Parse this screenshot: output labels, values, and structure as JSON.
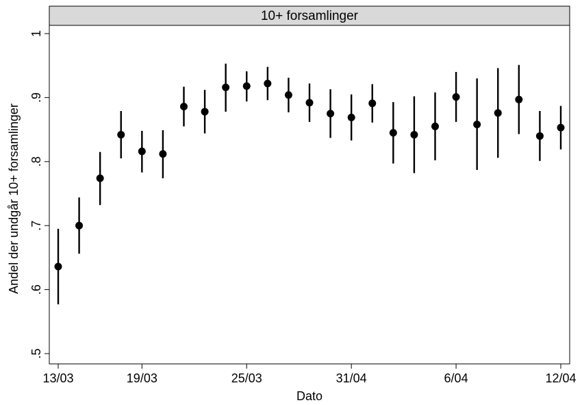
{
  "chart_data": {
    "type": "scatter",
    "panel_title": "10+ forsamlinger",
    "xlabel": "Dato",
    "ylabel": "Andel der undgår 10+ forsamlinger",
    "ylim": [
      0.5,
      1.0
    ],
    "yticks": [
      0.5,
      0.6,
      0.7,
      0.8,
      0.9,
      1.0
    ],
    "ytick_labels": [
      ".5",
      ".6",
      ".7",
      ".8",
      ".9",
      "1"
    ],
    "xlim": [
      0,
      24
    ],
    "xticks": [
      0,
      4,
      9,
      14,
      19,
      24
    ],
    "xtick_labels": [
      "13/03",
      "19/03",
      "25/03",
      "31/04",
      "6/04",
      "12/04"
    ],
    "grid": false,
    "legend": "none",
    "marker_color": "#000000",
    "header_fill": "#d9d9d9",
    "series": [
      {
        "points": [
          {
            "x": 0,
            "y": 0.636,
            "lo": 0.577,
            "hi": 0.695
          },
          {
            "x": 1,
            "y": 0.7,
            "lo": 0.656,
            "hi": 0.744
          },
          {
            "x": 2,
            "y": 0.774,
            "lo": 0.732,
            "hi": 0.815
          },
          {
            "x": 3,
            "y": 0.842,
            "lo": 0.805,
            "hi": 0.879
          },
          {
            "x": 4,
            "y": 0.816,
            "lo": 0.783,
            "hi": 0.848
          },
          {
            "x": 5,
            "y": 0.812,
            "lo": 0.774,
            "hi": 0.849
          },
          {
            "x": 6,
            "y": 0.886,
            "lo": 0.855,
            "hi": 0.917
          },
          {
            "x": 7,
            "y": 0.878,
            "lo": 0.844,
            "hi": 0.912
          },
          {
            "x": 8,
            "y": 0.916,
            "lo": 0.878,
            "hi": 0.953
          },
          {
            "x": 9,
            "y": 0.918,
            "lo": 0.894,
            "hi": 0.941
          },
          {
            "x": 10,
            "y": 0.922,
            "lo": 0.896,
            "hi": 0.948
          },
          {
            "x": 11,
            "y": 0.904,
            "lo": 0.877,
            "hi": 0.931
          },
          {
            "x": 12,
            "y": 0.892,
            "lo": 0.862,
            "hi": 0.922
          },
          {
            "x": 13,
            "y": 0.875,
            "lo": 0.837,
            "hi": 0.913
          },
          {
            "x": 14,
            "y": 0.869,
            "lo": 0.833,
            "hi": 0.905
          },
          {
            "x": 15,
            "y": 0.891,
            "lo": 0.861,
            "hi": 0.921
          },
          {
            "x": 16,
            "y": 0.845,
            "lo": 0.797,
            "hi": 0.893
          },
          {
            "x": 17,
            "y": 0.842,
            "lo": 0.782,
            "hi": 0.902
          },
          {
            "x": 18,
            "y": 0.855,
            "lo": 0.802,
            "hi": 0.908
          },
          {
            "x": 19,
            "y": 0.901,
            "lo": 0.862,
            "hi": 0.94
          },
          {
            "x": 20,
            "y": 0.858,
            "lo": 0.787,
            "hi": 0.93
          },
          {
            "x": 21,
            "y": 0.876,
            "lo": 0.806,
            "hi": 0.946
          },
          {
            "x": 22,
            "y": 0.897,
            "lo": 0.843,
            "hi": 0.951
          },
          {
            "x": 23,
            "y": 0.84,
            "lo": 0.801,
            "hi": 0.879
          },
          {
            "x": 24,
            "y": 0.853,
            "lo": 0.819,
            "hi": 0.887
          }
        ]
      }
    ]
  }
}
